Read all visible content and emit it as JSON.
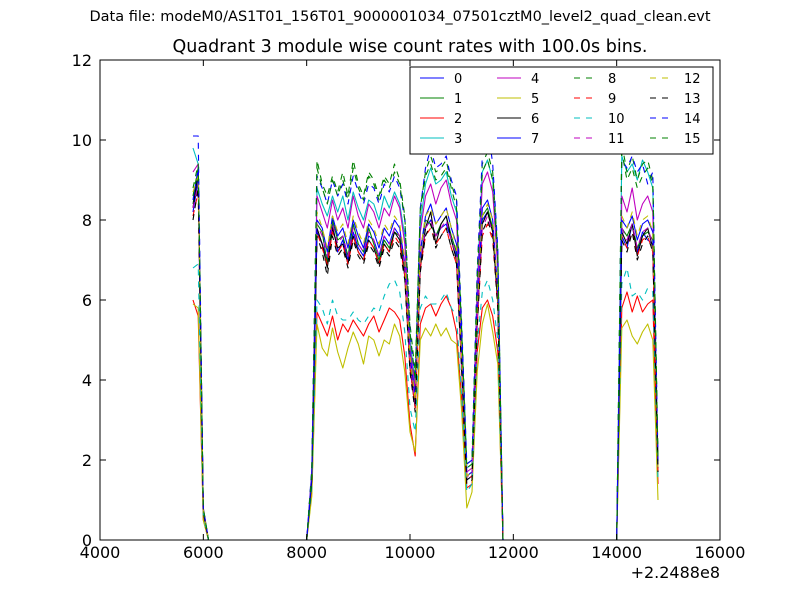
{
  "suptitle": "Data file: modeM0/AS1T01_156T01_9000001034_07501cztM0_level2_quad_clean.evt",
  "chart_data": {
    "type": "line",
    "title": "Quadrant 3 module wise count rates with 100.0s bins.",
    "xlabel": "",
    "ylabel": "",
    "x_offset_label": "+2.2488e8",
    "xlim": [
      4000,
      16000
    ],
    "ylim": [
      0,
      12
    ],
    "xticks": [
      4000,
      6000,
      8000,
      10000,
      12000,
      14000,
      16000
    ],
    "yticks": [
      0,
      2,
      4,
      6,
      8,
      10,
      12
    ],
    "grid": false,
    "legend_position": "top-right",
    "legend_columns": 4,
    "x_unit_note": "time offset from 2.2488e8",
    "x": [
      5800,
      5900,
      6000,
      6100,
      8000,
      8100,
      8200,
      8300,
      8400,
      8500,
      8600,
      8700,
      8800,
      8900,
      9000,
      9100,
      9200,
      9300,
      9400,
      9500,
      9600,
      9700,
      9800,
      9900,
      10000,
      10100,
      10200,
      10300,
      10400,
      10500,
      10600,
      10700,
      10800,
      10900,
      11000,
      11100,
      11200,
      11300,
      11400,
      11500,
      11600,
      11700,
      11800,
      11900,
      14000,
      14100,
      14200,
      14300,
      14400,
      14500,
      14600,
      14700,
      14800
    ],
    "gaps_after_x": [
      6100,
      11900
    ],
    "series": [
      {
        "name": "0",
        "color": "#0000ff",
        "dash": false,
        "values": [
          8.2,
          9.0,
          0.6,
          0,
          0,
          1.4,
          7.7,
          7.4,
          7.0,
          7.9,
          7.2,
          7.5,
          7.0,
          7.7,
          7.3,
          7.1,
          7.6,
          7.5,
          7.1,
          7.6,
          7.4,
          7.8,
          7.6,
          6.7,
          4.4,
          3.4,
          6.9,
          7.8,
          8.0,
          7.6,
          7.8,
          7.9,
          7.5,
          7.1,
          4.4,
          1.5,
          1.6,
          5.5,
          8.0,
          8.2,
          7.8,
          6.0,
          0,
          0,
          0,
          7.6,
          7.3,
          7.9,
          7.2,
          7.7,
          7.5,
          7.4,
          1.7
        ]
      },
      {
        "name": "1",
        "color": "#008000",
        "dash": false,
        "values": [
          8.4,
          9.2,
          0.7,
          0,
          0,
          1.5,
          7.9,
          7.7,
          6.9,
          8.0,
          7.5,
          7.6,
          7.1,
          7.9,
          7.4,
          7.2,
          7.8,
          7.4,
          7.0,
          7.5,
          7.3,
          7.7,
          7.6,
          6.8,
          4.5,
          3.6,
          7.2,
          8.0,
          7.9,
          7.6,
          7.9,
          8.1,
          7.6,
          7.2,
          4.7,
          1.6,
          1.7,
          5.6,
          8.1,
          8.3,
          7.8,
          6.2,
          0,
          0,
          0,
          7.8,
          7.6,
          7.9,
          7.3,
          7.6,
          7.7,
          7.5,
          1.8
        ]
      },
      {
        "name": "2",
        "color": "#ff0000",
        "dash": false,
        "values": [
          6.0,
          5.6,
          0.5,
          0,
          0,
          1.2,
          5.7,
          5.4,
          5.1,
          5.6,
          5.0,
          5.4,
          5.2,
          5.5,
          5.3,
          5.1,
          5.4,
          5.6,
          5.2,
          5.5,
          5.8,
          5.7,
          5.5,
          4.6,
          2.9,
          2.1,
          5.4,
          5.8,
          5.9,
          5.6,
          5.9,
          6.1,
          5.8,
          5.2,
          3.5,
          1.3,
          1.4,
          4.7,
          5.8,
          6.0,
          5.6,
          4.7,
          0,
          0,
          0,
          5.8,
          6.2,
          5.7,
          6.1,
          5.7,
          5.9,
          6.0,
          1.4
        ]
      },
      {
        "name": "3",
        "color": "#00bfbf",
        "dash": false,
        "values": [
          9.8,
          9.4,
          0.8,
          0,
          0,
          1.7,
          8.8,
          8.4,
          8.1,
          8.6,
          8.2,
          8.6,
          8.0,
          8.7,
          8.3,
          8.0,
          8.5,
          8.4,
          8.0,
          8.6,
          8.3,
          8.7,
          8.4,
          7.6,
          5.0,
          3.9,
          7.9,
          8.9,
          9.3,
          8.9,
          9.0,
          9.2,
          8.6,
          8.2,
          5.2,
          1.8,
          1.9,
          6.4,
          9.2,
          9.5,
          9.0,
          7.0,
          0,
          0,
          0,
          9.6,
          9.2,
          9.4,
          9.0,
          9.5,
          9.2,
          8.8,
          1.9
        ]
      },
      {
        "name": "4",
        "color": "#bf00bf",
        "dash": false,
        "values": [
          9.2,
          9.4,
          0.8,
          0,
          0,
          1.7,
          8.6,
          8.2,
          7.8,
          8.5,
          8.0,
          8.3,
          7.8,
          8.6,
          8.1,
          7.8,
          8.4,
          8.2,
          7.8,
          8.3,
          8.1,
          8.6,
          8.3,
          7.4,
          4.8,
          3.8,
          7.7,
          8.6,
          8.9,
          8.4,
          8.8,
          9.0,
          8.4,
          8.0,
          5.0,
          1.7,
          1.8,
          6.2,
          8.9,
          9.2,
          8.7,
          6.8,
          0,
          0,
          0,
          8.6,
          8.2,
          8.8,
          8.0,
          8.4,
          8.6,
          8.2,
          1.9
        ]
      },
      {
        "name": "5",
        "color": "#bfbf00",
        "dash": false,
        "values": [
          5.9,
          5.8,
          0.5,
          0,
          0,
          1.1,
          5.4,
          4.8,
          4.6,
          5.3,
          4.7,
          4.3,
          4.8,
          5.2,
          4.9,
          4.4,
          5.1,
          5.0,
          4.6,
          5.0,
          4.9,
          5.4,
          5.1,
          4.2,
          2.7,
          2.2,
          5.0,
          5.3,
          5.1,
          5.4,
          5.1,
          5.3,
          5.0,
          4.9,
          3.2,
          0.8,
          1.2,
          4.2,
          5.4,
          5.9,
          5.2,
          4.4,
          0,
          0,
          0,
          5.3,
          5.5,
          5.1,
          4.9,
          5.2,
          5.4,
          5.0,
          1.0
        ]
      },
      {
        "name": "6",
        "color": "#000000",
        "dash": false,
        "values": [
          8.3,
          9.2,
          0.7,
          0,
          0,
          1.5,
          7.8,
          7.4,
          6.8,
          7.8,
          7.3,
          7.4,
          6.9,
          7.6,
          7.2,
          7.0,
          7.5,
          7.3,
          6.9,
          7.4,
          7.2,
          7.7,
          7.5,
          6.6,
          4.3,
          3.3,
          6.8,
          7.8,
          8.2,
          7.4,
          7.9,
          8.1,
          7.5,
          7.0,
          4.3,
          1.5,
          1.6,
          5.4,
          7.9,
          8.2,
          7.7,
          5.9,
          0,
          0,
          0,
          7.7,
          7.4,
          7.9,
          7.1,
          7.6,
          7.8,
          7.3,
          1.8
        ]
      },
      {
        "name": "7",
        "color": "#0000ff",
        "dash": false,
        "values": [
          8.5,
          9.3,
          0.7,
          0,
          0,
          1.6,
          8.0,
          7.8,
          7.2,
          8.1,
          7.6,
          7.8,
          7.3,
          8.0,
          7.6,
          7.3,
          7.9,
          7.7,
          7.3,
          7.8,
          7.6,
          8.0,
          7.8,
          6.9,
          4.6,
          3.6,
          7.2,
          8.1,
          8.4,
          7.9,
          8.1,
          8.3,
          7.8,
          7.4,
          4.6,
          1.6,
          1.7,
          5.7,
          8.3,
          8.5,
          8.0,
          6.2,
          0,
          0,
          0,
          8.0,
          7.8,
          8.1,
          7.5,
          7.9,
          8.0,
          7.7,
          1.8
        ]
      },
      {
        "name": "8",
        "color": "#008000",
        "dash": true,
        "values": [
          8.6,
          9.3,
          0.7,
          0,
          0,
          1.7,
          9.5,
          8.9,
          8.6,
          9.1,
          8.7,
          9.2,
          8.6,
          9.5,
          8.9,
          8.6,
          9.2,
          9.0,
          8.6,
          9.1,
          8.9,
          9.4,
          9.0,
          8.1,
          5.4,
          4.2,
          8.3,
          9.2,
          9.6,
          9.2,
          9.3,
          9.5,
          8.9,
          8.5,
          5.4,
          1.9,
          2.0,
          6.7,
          9.4,
          9.7,
          9.2,
          7.2,
          0,
          0,
          0,
          9.9,
          9.2,
          9.6,
          9.0,
          9.4,
          9.5,
          9.0,
          2.0
        ]
      },
      {
        "name": "9",
        "color": "#ff0000",
        "dash": true,
        "values": [
          8.1,
          8.7,
          0.7,
          0,
          0,
          1.5,
          7.7,
          7.3,
          6.9,
          7.7,
          7.2,
          7.4,
          6.9,
          7.6,
          7.2,
          7.0,
          7.5,
          7.3,
          6.9,
          7.4,
          7.2,
          7.6,
          7.4,
          6.6,
          4.3,
          3.3,
          6.8,
          7.6,
          7.8,
          7.4,
          7.6,
          7.8,
          7.3,
          6.9,
          4.3,
          1.5,
          1.6,
          5.3,
          7.6,
          7.9,
          7.5,
          5.8,
          0,
          0,
          0,
          7.6,
          7.3,
          7.7,
          7.1,
          7.5,
          7.6,
          7.2,
          1.7
        ]
      },
      {
        "name": "10",
        "color": "#00bfbf",
        "dash": true,
        "values": [
          6.8,
          6.9,
          0.6,
          0,
          0,
          1.3,
          6.0,
          5.8,
          5.4,
          6.0,
          5.6,
          5.5,
          5.5,
          5.7,
          5.5,
          5.4,
          5.6,
          5.8,
          5.7,
          6.1,
          6.4,
          6.5,
          6.2,
          5.2,
          3.3,
          2.7,
          5.8,
          6.1,
          5.9,
          5.9,
          6.0,
          6.2,
          5.8,
          5.6,
          3.6,
          1.2,
          1.4,
          4.9,
          6.2,
          6.5,
          6.0,
          5.0,
          0,
          0,
          0,
          6.4,
          6.8,
          6.1,
          6.2,
          6.0,
          6.3,
          6.2,
          1.5
        ]
      },
      {
        "name": "11",
        "color": "#bf00bf",
        "dash": true,
        "values": [
          8.3,
          8.9,
          0.7,
          0,
          0,
          1.6,
          7.9,
          7.6,
          7.1,
          7.9,
          7.4,
          7.6,
          7.1,
          7.8,
          7.4,
          7.2,
          7.7,
          7.5,
          7.1,
          7.6,
          7.4,
          7.8,
          7.6,
          6.8,
          4.4,
          3.4,
          7.0,
          7.8,
          8.0,
          7.6,
          7.8,
          8.0,
          7.5,
          7.1,
          4.4,
          1.6,
          1.6,
          5.5,
          7.8,
          8.1,
          7.7,
          6.0,
          0,
          0,
          0,
          7.8,
          7.5,
          7.9,
          7.3,
          7.7,
          7.8,
          7.4,
          1.7
        ]
      },
      {
        "name": "12",
        "color": "#bfbf00",
        "dash": true,
        "values": [
          8.7,
          9.1,
          0.7,
          0,
          0,
          1.6,
          8.2,
          7.8,
          7.3,
          8.1,
          7.7,
          7.9,
          7.4,
          8.1,
          7.7,
          7.4,
          8.0,
          7.8,
          7.4,
          7.9,
          7.7,
          8.1,
          7.9,
          7.0,
          4.6,
          3.5,
          7.2,
          8.1,
          8.3,
          7.9,
          8.1,
          8.3,
          7.8,
          7.3,
          4.6,
          1.6,
          1.7,
          5.7,
          8.1,
          8.4,
          8.0,
          6.2,
          0,
          0,
          0,
          8.1,
          7.8,
          8.2,
          7.6,
          8.0,
          8.1,
          7.7,
          1.8
        ]
      },
      {
        "name": "13",
        "color": "#000000",
        "dash": true,
        "values": [
          8.0,
          8.8,
          0.7,
          0,
          0,
          1.5,
          7.6,
          7.2,
          6.6,
          7.6,
          7.1,
          7.3,
          6.8,
          7.5,
          7.1,
          6.9,
          7.4,
          7.2,
          6.8,
          7.3,
          7.1,
          7.5,
          7.3,
          6.5,
          4.2,
          3.2,
          6.7,
          7.6,
          7.9,
          7.3,
          7.6,
          7.8,
          7.3,
          6.9,
          4.2,
          1.4,
          1.5,
          5.3,
          7.7,
          8.0,
          7.6,
          5.8,
          0,
          0,
          0,
          7.5,
          7.2,
          7.7,
          7.0,
          7.4,
          7.6,
          7.2,
          1.7
        ]
      },
      {
        "name": "14",
        "color": "#0000ff",
        "dash": true,
        "values": [
          10.1,
          10.1,
          0.8,
          0,
          0,
          1.8,
          9.1,
          8.8,
          8.4,
          9.0,
          8.6,
          8.9,
          8.4,
          9.1,
          8.7,
          8.4,
          8.9,
          8.8,
          8.4,
          8.9,
          8.7,
          9.1,
          8.8,
          8.0,
          5.2,
          4.0,
          8.3,
          9.3,
          9.8,
          9.3,
          9.4,
          9.6,
          9.0,
          8.6,
          5.3,
          1.9,
          2.0,
          6.7,
          9.6,
          10.4,
          9.4,
          7.3,
          0,
          0,
          0,
          9.5,
          9.3,
          9.6,
          9.2,
          9.4,
          8.9,
          9.2,
          2.0
        ]
      },
      {
        "name": "15",
        "color": "#008000",
        "dash": true,
        "values": [
          8.8,
          9.4,
          0.8,
          0,
          0,
          1.7,
          9.3,
          8.8,
          8.4,
          9.0,
          8.6,
          9.0,
          8.5,
          9.3,
          8.8,
          8.5,
          9.1,
          8.9,
          8.5,
          9.0,
          8.8,
          9.2,
          8.9,
          8.0,
          5.2,
          4.0,
          8.2,
          9.1,
          9.4,
          9.0,
          9.1,
          9.3,
          8.8,
          8.3,
          5.2,
          1.8,
          1.9,
          6.5,
          9.2,
          9.5,
          9.0,
          7.0,
          0,
          0,
          0,
          9.7,
          9.0,
          9.3,
          8.8,
          9.1,
          9.3,
          8.9,
          2.0
        ]
      }
    ]
  }
}
